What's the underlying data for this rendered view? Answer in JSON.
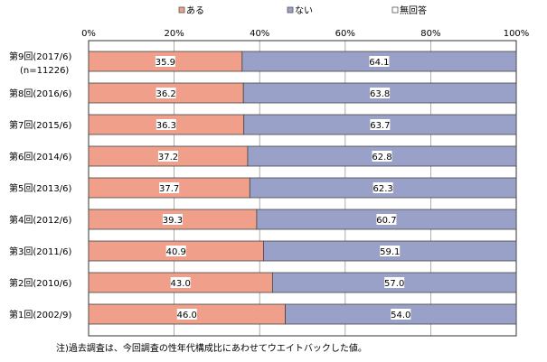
{
  "chart_data": {
    "type": "bar",
    "orientation": "horizontal",
    "stacked": true,
    "categories": [
      [
        "第9回(2017/6)",
        "(n=11226)"
      ],
      [
        "第8回(2016/6)"
      ],
      [
        "第7回(2015/6)"
      ],
      [
        "第6回(2014/6)"
      ],
      [
        "第5回(2013/6)"
      ],
      [
        "第4回(2012/6)"
      ],
      [
        "第3回(2011/6)"
      ],
      [
        "第2回(2010/6)"
      ],
      [
        "第1回(2002/9)"
      ]
    ],
    "series": [
      {
        "name": "ある",
        "color": "#f0a08a",
        "values": [
          35.9,
          36.2,
          36.3,
          37.2,
          37.7,
          39.3,
          40.9,
          43.0,
          46.0
        ]
      },
      {
        "name": "ない",
        "color": "#9aa1c9",
        "values": [
          64.1,
          63.8,
          63.7,
          62.8,
          62.3,
          60.7,
          59.1,
          57.0,
          54.0
        ]
      },
      {
        "name": "無回答",
        "color": "#ffffff",
        "values": [
          0,
          0,
          0,
          0,
          0,
          0,
          0,
          0,
          0
        ]
      }
    ],
    "data_labels": [
      [
        "35.9",
        "36.2",
        "36.3",
        "37.2",
        "37.7",
        "39.3",
        "40.9",
        "43.0",
        "46.0"
      ],
      [
        "64.1",
        "63.8",
        "63.7",
        "62.8",
        "62.3",
        "60.7",
        "59.1",
        "57.0",
        "54.0"
      ]
    ],
    "x_ticks": [
      "0%",
      "20%",
      "40%",
      "60%",
      "80%",
      "100%"
    ],
    "xlim": [
      0,
      100
    ],
    "grid": "vertical",
    "legend_position": "top",
    "note": "注)過去調査は、今回調査の性年代構成比にあわせてウエイトバックした値。"
  }
}
